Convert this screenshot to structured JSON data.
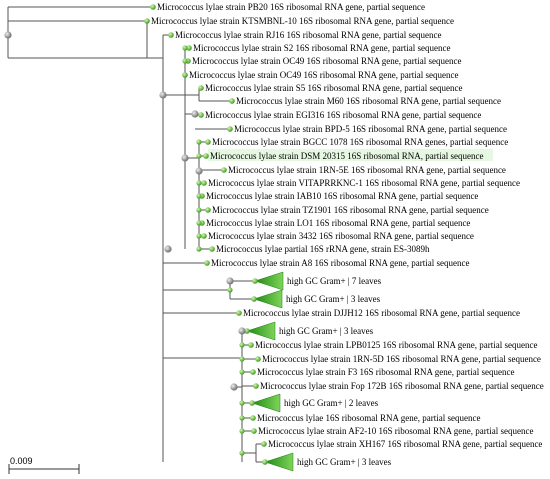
{
  "tree": {
    "scale_bar_label": "0.009",
    "leaves": [
      {
        "label": "Micrococcus lylae strain PB20 16S ribosomal RNA gene, partial sequence",
        "type": "seq"
      },
      {
        "label": "Micrococcus lylae strain KTSMBNL-10 16S ribosomal RNA gene, partial sequence",
        "type": "seq"
      },
      {
        "label": "Micrococcus lylae strain RJ16 16S ribosomal RNA gene, partial sequence",
        "type": "seq"
      },
      {
        "label": "Micrococcus lylae strain S2 16S ribosomal RNA gene, partial sequence",
        "type": "seq"
      },
      {
        "label": "Micrococcus lylae strain OC49 16S ribosomal RNA gene, partial sequence",
        "type": "seq"
      },
      {
        "label": "Micrococcus lylae strain OC49 16S ribosomal RNA gene, partial sequence",
        "type": "seq"
      },
      {
        "label": "Micrococcus lylae strain S5 16S ribosomal RNA gene, partial sequence",
        "type": "seq"
      },
      {
        "label": "Micrococcus lylae strain M60 16S ribosomal RNA gene, partial sequence",
        "type": "seq"
      },
      {
        "label": "Micrococcus lylae strain EGI316 16S ribosomal RNA gene, partial sequence",
        "type": "seq"
      },
      {
        "label": "Micrococcus lylae strain BPD-5 16S ribosomal RNA gene, partial sequence",
        "type": "seq"
      },
      {
        "label": "Micrococcus lylae strain BGCC 1078 16S ribosomal RNA genes, partial sequence",
        "type": "seq"
      },
      {
        "label": "Micrococcus lylae strain DSM 20315 16S ribosomal RNA, partial sequence",
        "type": "seq",
        "highlight": true
      },
      {
        "label": "Micrococcus lylae strain 1RN-5E 16S ribosomal RNA gene, partial sequence",
        "type": "seq"
      },
      {
        "label": "Micrococcus lylae strain VITAPRRKNC-1 16S ribosomal RNA gene, partial sequence",
        "type": "seq"
      },
      {
        "label": "Micrococcus lylae strain IAB10 16S ribosomal RNA gene, partial sequence",
        "type": "seq"
      },
      {
        "label": "Micrococcus lylae strain TZ1901 16S ribosomal RNA gene, partial sequence",
        "type": "seq"
      },
      {
        "label": "Micrococcus lylae strain LO1 16S ribosomal RNA gene, partial sequence",
        "type": "seq"
      },
      {
        "label": "Micrococcus lylae strain 3432 16S ribosomal RNA gene, partial sequence",
        "type": "seq"
      },
      {
        "label": "Micrococcus lylae partial 16S rRNA gene, strain ES-3089h",
        "type": "seq"
      },
      {
        "label": "Micrococcus lylae strain A8 16S ribosomal RNA gene, partial sequence",
        "type": "seq"
      },
      {
        "label": "high GC Gram+ | 7 leaves",
        "type": "collapsed"
      },
      {
        "label": "high GC Gram+ | 3 leaves",
        "type": "collapsed"
      },
      {
        "label": "Micrococcus lylae strain DJJH12 16S ribosomal RNA gene, partial sequence",
        "type": "seq"
      },
      {
        "label": "high GC Gram+ | 3 leaves",
        "type": "collapsed"
      },
      {
        "label": "Micrococcus lylae strain LPB0125 16S ribosomal RNA gene, partial sequence",
        "type": "seq"
      },
      {
        "label": "Micrococcus lylae strain 1RN-5D 16S ribosomal RNA gene, partial sequence",
        "type": "seq"
      },
      {
        "label": "Micrococcus lylae strain F3 16S ribosomal RNA gene, partial sequence",
        "type": "seq"
      },
      {
        "label": "Micrococcus lylae strain Fop 172B 16S ribosomal RNA gene, partial sequence",
        "type": "seq"
      },
      {
        "label": "high GC Gram+ | 2 leaves",
        "type": "collapsed"
      },
      {
        "label": "Micrococcus lylae 16S ribosomal RNA gene, partial sequence",
        "type": "seq"
      },
      {
        "label": "Micrococcus lylae strain AF2-10 16S ribosomal RNA gene, partial sequence",
        "type": "seq"
      },
      {
        "label": "Micrococcus lylae strain XH167 16S ribosomal RNA gene, partial sequence",
        "type": "seq"
      },
      {
        "label": "high GC Gram+ | 3 leaves",
        "type": "collapsed"
      }
    ]
  },
  "colors": {
    "branch": "#555555",
    "leaf_node": "#66cc33",
    "internal_node": "#9a9a9a",
    "collapsed_fill": "#33aa22",
    "highlight": "#e6f7e2"
  }
}
